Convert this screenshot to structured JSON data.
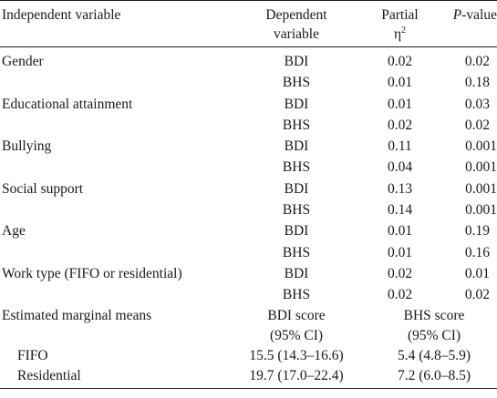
{
  "header": {
    "independent": "Independent variable",
    "dependent_line1": "Dependent",
    "dependent_line2": "variable",
    "partial_line1": "Partial",
    "partial_eta": "η",
    "partial_sup": "2",
    "p_italic": "P",
    "p_rest": "-value"
  },
  "rows": [
    {
      "variable": "Gender",
      "dv": "BDI",
      "eta": "0.02",
      "p": "0.02"
    },
    {
      "variable": "",
      "dv": "BHS",
      "eta": "0.01",
      "p": "0.18"
    },
    {
      "variable": "Educational attainment",
      "dv": "BDI",
      "eta": "0.01",
      "p": "0.03"
    },
    {
      "variable": "",
      "dv": "BHS",
      "eta": "0.02",
      "p": "0.02"
    },
    {
      "variable": "Bullying",
      "dv": "BDI",
      "eta": "0.11",
      "p": "0.001"
    },
    {
      "variable": "",
      "dv": "BHS",
      "eta": "0.04",
      "p": "0.001"
    },
    {
      "variable": "Social support",
      "dv": "BDI",
      "eta": "0.13",
      "p": "0.001"
    },
    {
      "variable": "",
      "dv": "BHS",
      "eta": "0.14",
      "p": "0.001"
    },
    {
      "variable": "Age",
      "dv": "BDI",
      "eta": "0.01",
      "p": "0.19"
    },
    {
      "variable": "",
      "dv": "BHS",
      "eta": "0.01",
      "p": "0.16"
    },
    {
      "variable": "Work type (FIFO or residential)",
      "dv": "BDI",
      "eta": "0.02",
      "p": "0.01"
    },
    {
      "variable": "",
      "dv": "BHS",
      "eta": "0.02",
      "p": "0.02"
    }
  ],
  "marginal_means": {
    "label": "Estimated marginal means",
    "bdi_line1": "BDI score",
    "bdi_line2": "(95% CI)",
    "bhs_line1": "BHS score",
    "bhs_line2": "(95% CI)",
    "groups": [
      {
        "name": "FIFO",
        "bdi": "15.5 (14.3–16.6)",
        "bhs": "5.4 (4.8–5.9)"
      },
      {
        "name": "Residential",
        "bdi": "19.7 (17.0–22.4)",
        "bhs": "7.2 (6.0–8.5)"
      }
    ]
  }
}
